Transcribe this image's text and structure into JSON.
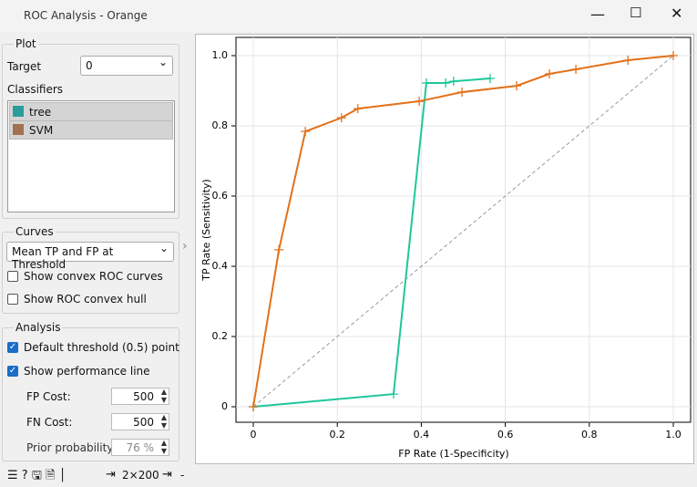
{
  "window": {
    "title": "ROC Analysis - Orange"
  },
  "panel": {
    "plot_group": "Plot",
    "target_label": "Target",
    "target_value": "0",
    "classifiers_label": "Classifiers",
    "curves_group": "Curves",
    "curves_value": "Mean TP and FP at Threshold",
    "curve_options": [
      {
        "label": "Show convex ROC curves",
        "checked": false
      },
      {
        "label": "Show ROC convex hull",
        "checked": false
      }
    ],
    "analysis_group": "Analysis",
    "analysis_options": [
      {
        "label": "Default threshold (0.5) point",
        "checked": true
      },
      {
        "label": "Show performance line",
        "checked": true
      }
    ],
    "fields": [
      {
        "label": "FP Cost:",
        "value": "500"
      },
      {
        "label": "FN Cost:",
        "value": "500"
      },
      {
        "label": "Prior probability:",
        "value": "76 %"
      }
    ]
  },
  "status": {
    "data_in": "2×200",
    "data_out": "-"
  },
  "chart_data": {
    "type": "line",
    "xlabel": "FP Rate (1-Specificity)",
    "ylabel": "TP Rate (Sensitivity)",
    "xlim": [
      0,
      1
    ],
    "ylim": [
      0,
      1
    ],
    "xticks": [
      0,
      0.2,
      0.4,
      0.6,
      0.8,
      {
        "value": 1,
        "label": "1.0"
      }
    ],
    "yticks": [
      0,
      0.2,
      0.4,
      0.6,
      0.8,
      {
        "value": 1,
        "label": "1.0"
      }
    ],
    "grid": true,
    "series": [
      {
        "name": "tree",
        "color": "#1fc79b",
        "legend_color": "#2a9d9a",
        "x": [
          0,
          0.334,
          0.412,
          0.458,
          0.477,
          0.564
        ],
        "values": [
          0,
          0.036,
          0.922,
          0.922,
          0.927,
          0.935
        ]
      },
      {
        "name": "SVM",
        "color": "#e3711a",
        "legend_color": "#a2714f",
        "x": [
          0,
          0.061,
          0.124,
          0.21,
          0.249,
          0.395,
          0.497,
          0.627,
          0.705,
          0.768,
          0.892,
          1
        ],
        "values": [
          0,
          0.447,
          0.784,
          0.823,
          0.849,
          0.87,
          0.896,
          0.914,
          0.948,
          0.961,
          0.987,
          1
        ]
      }
    ]
  }
}
